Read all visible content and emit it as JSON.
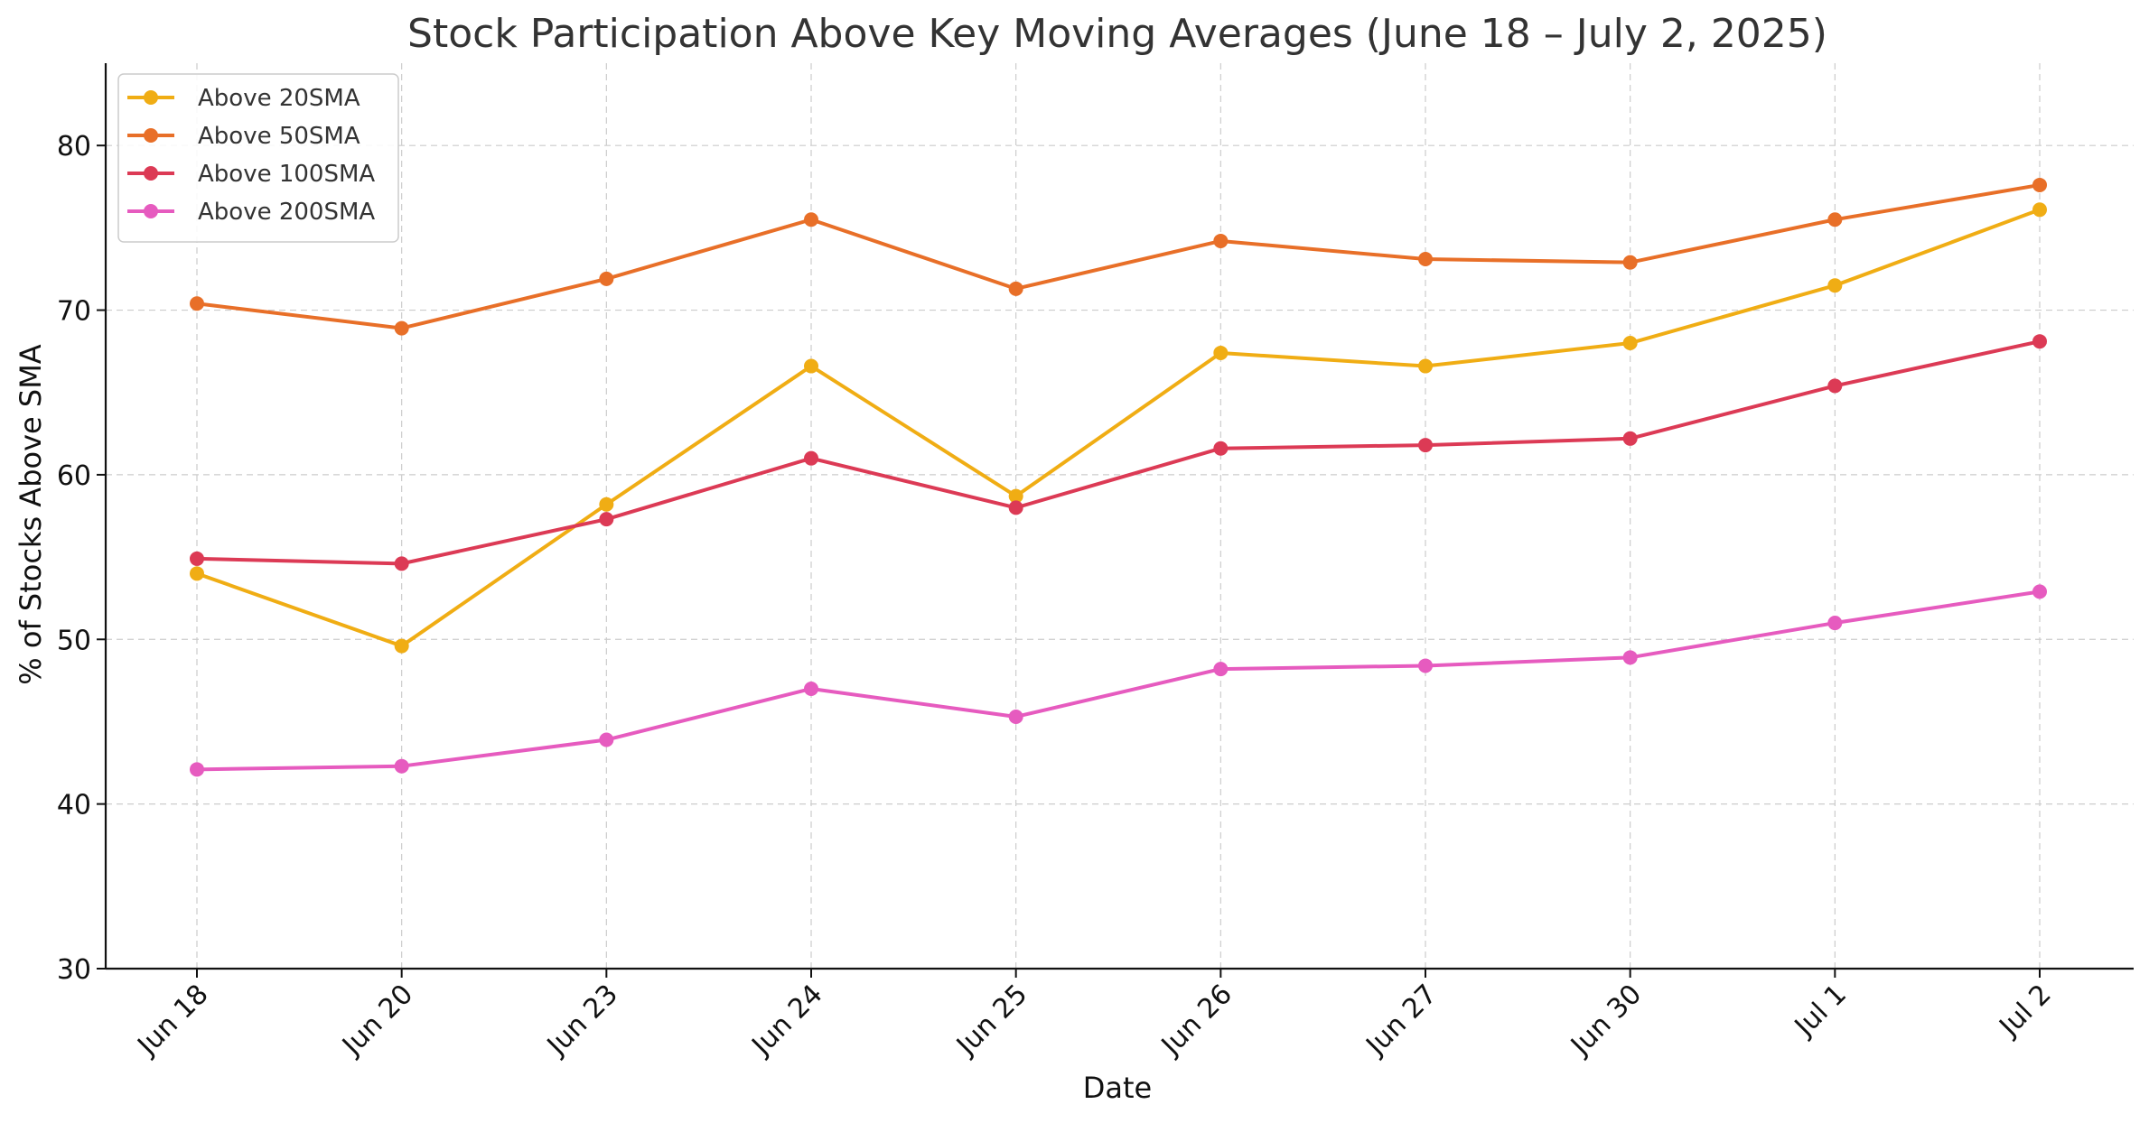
{
  "chart_data": {
    "type": "line",
    "title": "Stock Participation Above Key Moving Averages (June 18 – July 2, 2025)",
    "xlabel": "Date",
    "ylabel": "% of Stocks Above SMA",
    "categories": [
      "Jun 18",
      "Jun 20",
      "Jun 23",
      "Jun 24",
      "Jun 25",
      "Jun 26",
      "Jun 27",
      "Jun 30",
      "Jul 1",
      "Jul 2"
    ],
    "ylim": [
      30,
      85
    ],
    "yticks": [
      30,
      40,
      50,
      60,
      70,
      80
    ],
    "grid": true,
    "legend_position": "top-left",
    "series": [
      {
        "name": "Above 20SMA",
        "color": "#f0ad14",
        "values": [
          54.0,
          49.6,
          58.2,
          66.6,
          58.7,
          67.4,
          66.6,
          68.0,
          71.5,
          76.1
        ]
      },
      {
        "name": "Above 50SMA",
        "color": "#e86f28",
        "values": [
          70.4,
          68.9,
          71.9,
          75.5,
          71.3,
          74.2,
          73.1,
          72.9,
          75.5,
          77.6
        ]
      },
      {
        "name": "Above 100SMA",
        "color": "#dc3a55",
        "values": [
          54.9,
          54.6,
          57.3,
          61.0,
          58.0,
          61.6,
          61.8,
          62.2,
          65.4,
          68.1
        ]
      },
      {
        "name": "Above 200SMA",
        "color": "#e65bbf",
        "values": [
          42.1,
          42.3,
          43.9,
          47.0,
          45.3,
          48.2,
          48.4,
          48.9,
          51.0,
          52.9
        ]
      }
    ]
  }
}
